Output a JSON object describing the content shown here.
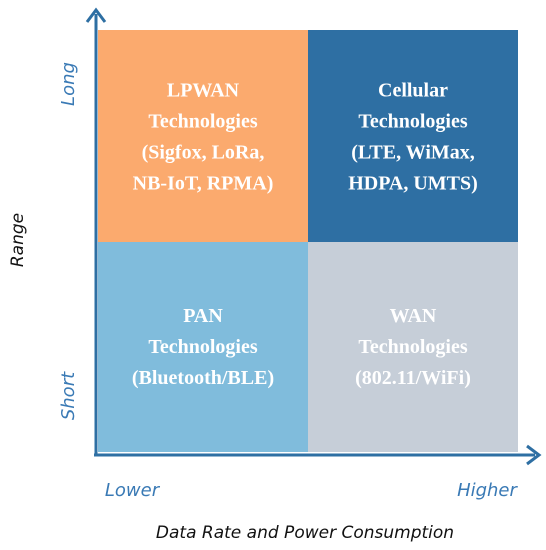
{
  "axes": {
    "y_title": "Range",
    "y_low": "Short",
    "y_high": "Long",
    "x_title": "Data Rate and Power Consumption",
    "x_low": "Lower",
    "x_high": "Higher"
  },
  "quadrants": [
    {
      "lines": [
        "LPWAN",
        "Technologies",
        "(Sigfox, LoRa,",
        "NB-IoT, RPMA)"
      ]
    },
    {
      "lines": [
        "Cellular",
        "Technologies",
        "(LTE, WiMax,",
        "HDPA, UMTS)"
      ]
    },
    {
      "lines": [
        "PAN",
        "Technologies",
        "(Bluetooth/BLE)"
      ]
    },
    {
      "lines": [
        "WAN",
        "Technologies",
        "(802.11/WiFi)"
      ]
    }
  ]
}
